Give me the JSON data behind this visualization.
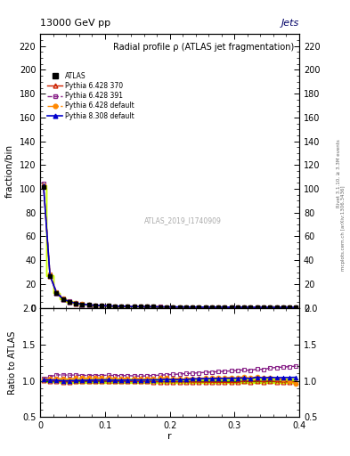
{
  "title_top": "13000 GeV pp",
  "title_right": "Jets",
  "main_title": "Radial profile ρ (ATLAS jet fragmentation)",
  "watermark": "ATLAS_2019_I1740909",
  "right_label": "mcplots.cern.ch [arXiv:1306.3436]",
  "rivet_label": "Rivet 3.1.10, ≥ 3.3M events",
  "xlabel": "r",
  "ylabel_main": "fraction/bin",
  "ylabel_ratio": "Ratio to ATLAS",
  "r_values": [
    0.005,
    0.015,
    0.025,
    0.035,
    0.045,
    0.055,
    0.065,
    0.075,
    0.085,
    0.095,
    0.105,
    0.115,
    0.125,
    0.135,
    0.145,
    0.155,
    0.165,
    0.175,
    0.185,
    0.195,
    0.205,
    0.215,
    0.225,
    0.235,
    0.245,
    0.255,
    0.265,
    0.275,
    0.285,
    0.295,
    0.305,
    0.315,
    0.325,
    0.335,
    0.345,
    0.355,
    0.365,
    0.375,
    0.385,
    0.395
  ],
  "atlas_values": [
    101.5,
    27.0,
    12.5,
    7.5,
    5.2,
    3.8,
    3.0,
    2.45,
    2.05,
    1.78,
    1.58,
    1.4,
    1.26,
    1.14,
    1.04,
    0.96,
    0.88,
    0.83,
    0.78,
    0.73,
    0.69,
    0.65,
    0.61,
    0.58,
    0.55,
    0.52,
    0.5,
    0.48,
    0.46,
    0.44,
    0.42,
    0.4,
    0.39,
    0.37,
    0.36,
    0.34,
    0.33,
    0.32,
    0.31,
    0.3
  ],
  "atlas_errors": [
    1.2,
    0.5,
    0.3,
    0.2,
    0.15,
    0.12,
    0.1,
    0.08,
    0.07,
    0.06,
    0.055,
    0.05,
    0.045,
    0.04,
    0.037,
    0.034,
    0.031,
    0.029,
    0.027,
    0.025,
    0.024,
    0.022,
    0.021,
    0.02,
    0.019,
    0.018,
    0.017,
    0.016,
    0.015,
    0.015,
    0.014,
    0.014,
    0.013,
    0.013,
    0.012,
    0.012,
    0.011,
    0.011,
    0.01,
    0.01
  ],
  "py6_370_values": [
    102.5,
    27.0,
    12.4,
    7.4,
    5.1,
    3.8,
    2.98,
    2.44,
    2.04,
    1.77,
    1.57,
    1.39,
    1.25,
    1.13,
    1.03,
    0.95,
    0.87,
    0.82,
    0.77,
    0.72,
    0.68,
    0.64,
    0.6,
    0.57,
    0.54,
    0.51,
    0.49,
    0.47,
    0.45,
    0.43,
    0.41,
    0.4,
    0.385,
    0.37,
    0.355,
    0.34,
    0.325,
    0.315,
    0.305,
    0.295
  ],
  "py6_391_values": [
    104.5,
    28.5,
    13.5,
    8.1,
    5.6,
    4.1,
    3.22,
    2.63,
    2.2,
    1.91,
    1.7,
    1.5,
    1.35,
    1.22,
    1.11,
    1.02,
    0.94,
    0.89,
    0.84,
    0.79,
    0.75,
    0.71,
    0.67,
    0.64,
    0.61,
    0.58,
    0.56,
    0.54,
    0.52,
    0.5,
    0.48,
    0.46,
    0.445,
    0.43,
    0.415,
    0.4,
    0.39,
    0.38,
    0.37,
    0.36
  ],
  "py6_def_values": [
    103.0,
    27.8,
    12.9,
    7.7,
    5.3,
    3.95,
    3.11,
    2.54,
    2.13,
    1.85,
    1.64,
    1.45,
    1.3,
    1.18,
    1.07,
    0.99,
    0.91,
    0.86,
    0.81,
    0.76,
    0.71,
    0.67,
    0.63,
    0.6,
    0.57,
    0.54,
    0.52,
    0.5,
    0.48,
    0.46,
    0.44,
    0.42,
    0.405,
    0.39,
    0.374,
    0.355,
    0.34,
    0.325,
    0.308,
    0.288
  ],
  "py8_def_values": [
    102.8,
    27.3,
    12.6,
    7.5,
    5.2,
    3.82,
    3.02,
    2.47,
    2.07,
    1.8,
    1.6,
    1.41,
    1.27,
    1.15,
    1.05,
    0.97,
    0.89,
    0.84,
    0.79,
    0.745,
    0.7,
    0.66,
    0.625,
    0.595,
    0.565,
    0.535,
    0.515,
    0.495,
    0.475,
    0.455,
    0.435,
    0.415,
    0.402,
    0.388,
    0.374,
    0.356,
    0.344,
    0.334,
    0.324,
    0.314
  ],
  "ratio_py6_370": [
    1.01,
    1.0,
    0.992,
    0.987,
    0.981,
    1.0,
    0.993,
    0.996,
    0.995,
    0.994,
    0.994,
    0.993,
    0.992,
    0.991,
    0.99,
    0.99,
    0.989,
    0.988,
    0.987,
    0.986,
    0.986,
    0.985,
    0.984,
    0.983,
    0.982,
    0.981,
    0.98,
    0.979,
    0.978,
    0.977,
    0.976,
    1.0,
    0.987,
    1.0,
    0.986,
    1.0,
    0.985,
    0.984,
    0.984,
    0.983
  ],
  "ratio_py6_391": [
    1.03,
    1.056,
    1.08,
    1.08,
    1.077,
    1.079,
    1.073,
    1.073,
    1.073,
    1.073,
    1.076,
    1.071,
    1.071,
    1.07,
    1.067,
    1.063,
    1.068,
    1.072,
    1.077,
    1.082,
    1.087,
    1.092,
    1.098,
    1.103,
    1.109,
    1.115,
    1.12,
    1.125,
    1.13,
    1.136,
    1.143,
    1.15,
    1.141,
    1.162,
    1.153,
    1.176,
    1.182,
    1.188,
    1.194,
    1.2
  ],
  "ratio_py6_def": [
    1.015,
    1.03,
    1.032,
    1.027,
    1.019,
    1.039,
    1.037,
    1.037,
    1.039,
    1.039,
    1.038,
    1.036,
    1.032,
    1.035,
    1.029,
    1.031,
    1.034,
    1.036,
    1.038,
    1.041,
    1.029,
    1.031,
    1.033,
    1.034,
    1.036,
    1.038,
    1.04,
    1.042,
    1.043,
    1.045,
    1.048,
    1.05,
    1.038,
    1.054,
    1.039,
    1.044,
    1.03,
    1.016,
    0.994,
    0.96
  ],
  "ratio_py8_def": [
    1.013,
    1.011,
    1.008,
    1.0,
    1.0,
    1.005,
    1.007,
    1.008,
    1.01,
    1.011,
    1.013,
    1.007,
    1.008,
    1.009,
    1.01,
    1.01,
    1.011,
    1.012,
    1.013,
    1.021,
    1.014,
    1.015,
    1.016,
    1.026,
    1.027,
    1.029,
    1.03,
    1.031,
    1.033,
    1.034,
    1.036,
    1.038,
    1.031,
    1.049,
    1.039,
    1.047,
    1.042,
    1.044,
    1.045,
    1.047
  ],
  "atlas_band_color": "#ccff00",
  "atlas_color": "#000000",
  "py6_370_color": "#cc2200",
  "py6_391_color": "#882288",
  "py6_def_color": "#ff8800",
  "py8_def_color": "#0000cc",
  "xlim": [
    0.0,
    0.4
  ],
  "ylim_main": [
    0,
    230
  ],
  "ylim_ratio": [
    0.5,
    2.0
  ],
  "yticks_main": [
    0,
    20,
    40,
    60,
    80,
    100,
    120,
    140,
    160,
    180,
    200,
    220
  ],
  "yticks_ratio": [
    0.5,
    1.0,
    1.5,
    2.0
  ]
}
